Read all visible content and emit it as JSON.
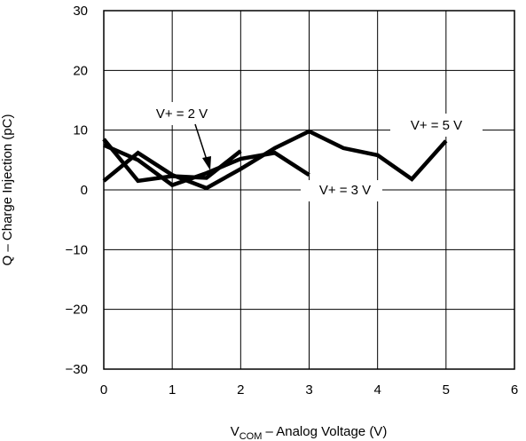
{
  "chart_data": {
    "type": "line",
    "xlabel_main": "V",
    "xlabel_sub": "COM",
    "xlabel_rest": " – Analog Voltage (V)",
    "ylabel": "Q – Charge Injection (pC)",
    "xlim": [
      0,
      6
    ],
    "ylim": [
      -30,
      30
    ],
    "x_ticks": [
      0,
      1,
      2,
      3,
      4,
      5,
      6
    ],
    "y_ticks": [
      -30,
      -20,
      -10,
      0,
      10,
      20,
      30
    ],
    "x_tick_labels": [
      "0",
      "1",
      "2",
      "3",
      "4",
      "5",
      "6"
    ],
    "y_tick_labels": [
      "−30",
      "−20",
      "−10",
      "0",
      "10",
      "20",
      "30"
    ],
    "grid": true,
    "series": [
      {
        "name": "V+ = 2 V",
        "x": [
          0,
          0.5,
          1.0,
          1.5,
          2.0
        ],
        "y": [
          8.5,
          1.5,
          2.3,
          2.0,
          6.5
        ]
      },
      {
        "name": "V+ = 3 V",
        "x": [
          0,
          0.5,
          1.0,
          1.5,
          2.0,
          2.5,
          3.0
        ],
        "y": [
          7.5,
          5.0,
          0.8,
          2.8,
          5.2,
          6.2,
          2.5
        ]
      },
      {
        "name": "V+ = 5 V",
        "x": [
          0,
          0.5,
          1.0,
          1.5,
          2.0,
          2.5,
          3.0,
          3.5,
          4.0,
          4.5,
          5.0
        ],
        "y": [
          1.5,
          6.2,
          2.5,
          0.3,
          3.5,
          7.0,
          9.8,
          7.0,
          5.8,
          1.8,
          8.2
        ]
      }
    ],
    "annotations": [
      {
        "text": "V+ = 2 V",
        "series": 0
      },
      {
        "text": "V+ = 3 V",
        "series": 1
      },
      {
        "text": "V+ = 5 V",
        "series": 2
      }
    ]
  }
}
